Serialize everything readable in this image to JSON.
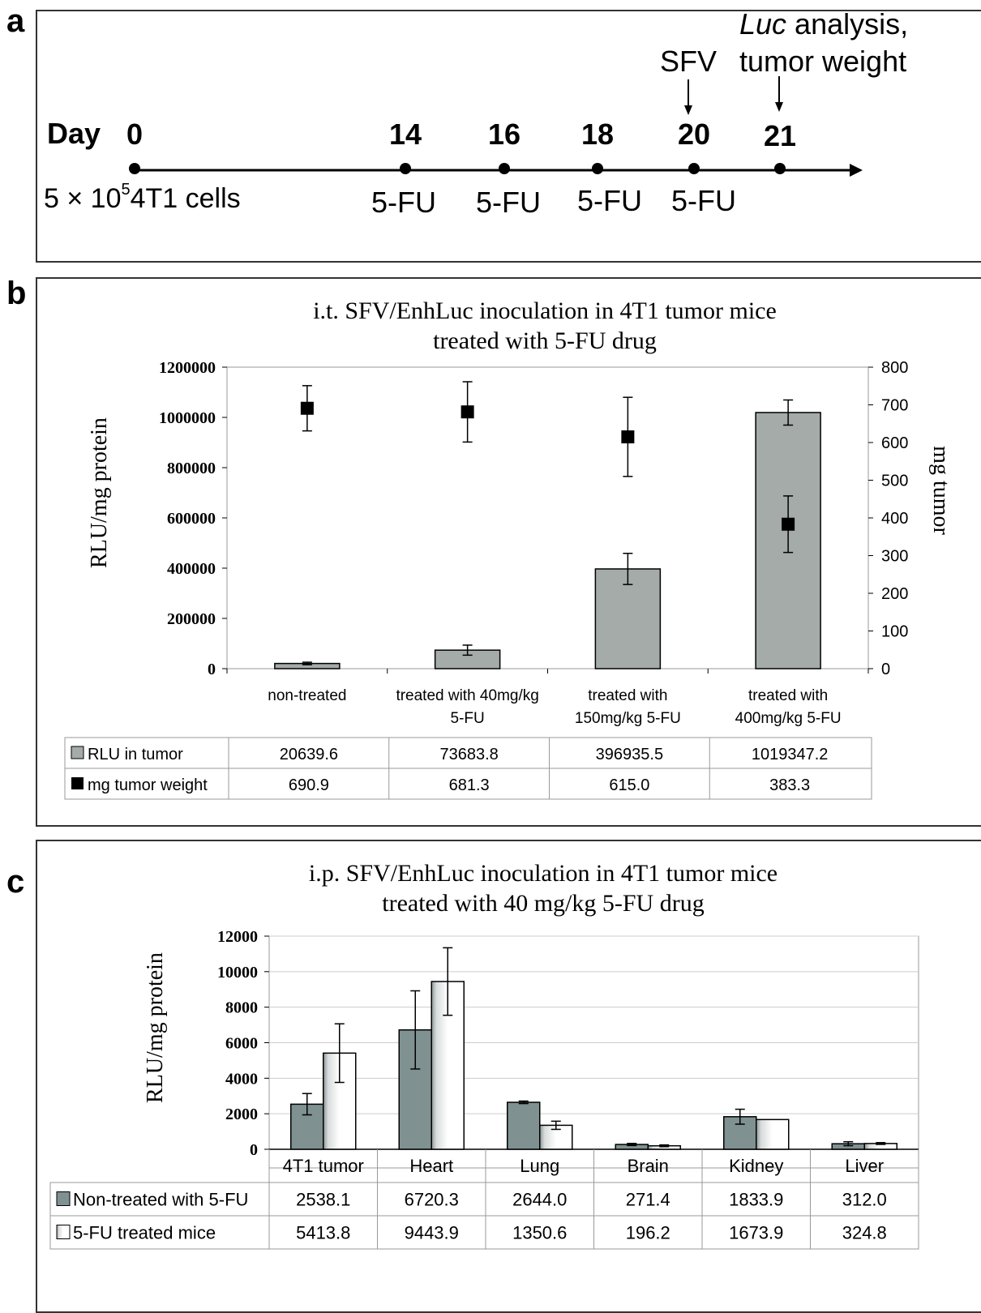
{
  "panels": {
    "a": "a",
    "b": "b",
    "c": "c"
  },
  "timeline": {
    "day_label": "Day",
    "days": [
      "0",
      "14",
      "16",
      "18",
      "20",
      "21"
    ],
    "cells_prefix": "5 × 10",
    "cells_exp": "5",
    "cells_suffix": "4T1  cells",
    "treatment": "5-FU",
    "sfv": "SFV",
    "analysis_luc": "Luc",
    "analysis_rest": " analysis,",
    "analysis_line2": "tumor weight"
  },
  "chart_data": [
    {
      "type": "bar",
      "title": "i.t. SFV/EnhLuc inoculation in 4T1 tumor mice",
      "subtitle": "treated with 5-FU drug",
      "ylabel": "RLU/mg protein",
      "y2label": "mg tumor",
      "ylim": [
        0,
        1200000
      ],
      "y2lim": [
        0,
        800
      ],
      "yticks": [
        "0",
        "200000",
        "400000",
        "600000",
        "800000",
        "1000000",
        "1200000"
      ],
      "y2ticks": [
        "0",
        "100",
        "200",
        "300",
        "400",
        "500",
        "600",
        "700",
        "800"
      ],
      "categories": [
        [
          "non-treated"
        ],
        [
          "treated with 40mg/kg",
          "5-FU"
        ],
        [
          "treated with",
          "150mg/kg 5-FU"
        ],
        [
          "treated with",
          "400mg/kg 5-FU"
        ]
      ],
      "series": [
        {
          "name": "RLU in tumor",
          "type": "bar",
          "color": "#a4aba8",
          "values": [
            20639.6,
            73683.8,
            396935.5,
            1019347.2
          ],
          "display": [
            "20639.6",
            "73683.8",
            "396935.5",
            "1019347.2"
          ],
          "errors": [
            5000,
            20000,
            62000,
            50000
          ]
        },
        {
          "name": "mg tumor weight",
          "type": "scatter",
          "color": "#000000",
          "axis": "right",
          "values": [
            690.9,
            681.3,
            615.0,
            383.3
          ],
          "display": [
            "690.9",
            "681.3",
            "615.0",
            "383.3"
          ],
          "errors": [
            60,
            80,
            105,
            75
          ]
        }
      ]
    },
    {
      "type": "bar",
      "title": "i.p. SFV/EnhLuc inoculation in 4T1 tumor mice",
      "subtitle": "treated with 40 mg/kg 5-FU drug",
      "ylabel": "RLU/mg protein",
      "ylim": [
        0,
        12000
      ],
      "yticks": [
        "0",
        "2000",
        "4000",
        "6000",
        "8000",
        "10000",
        "12000"
      ],
      "categories": [
        "4T1 tumor",
        "Heart",
        "Lung",
        "Brain",
        "Kidney",
        "Liver"
      ],
      "series": [
        {
          "name": "Non-treated with 5-FU",
          "color": "#7f9190",
          "values": [
            2538.1,
            6720.3,
            2644.0,
            271.4,
            1833.9,
            312.0
          ],
          "display": [
            "2538.1",
            "6720.3",
            "2644.0",
            "271.4",
            "1833.9",
            "312.0"
          ],
          "errors": [
            600,
            2200,
            70,
            60,
            420,
            110
          ]
        },
        {
          "name": "5-FU treated mice",
          "color": "#ffffff",
          "values": [
            5413.8,
            9443.9,
            1350.6,
            196.2,
            1673.9,
            324.8
          ],
          "display": [
            "5413.8",
            "9443.9",
            "1350.6",
            "196.2",
            "1673.9",
            "324.8"
          ],
          "errors": [
            1650,
            1900,
            230,
            50,
            0,
            50
          ]
        }
      ]
    }
  ]
}
